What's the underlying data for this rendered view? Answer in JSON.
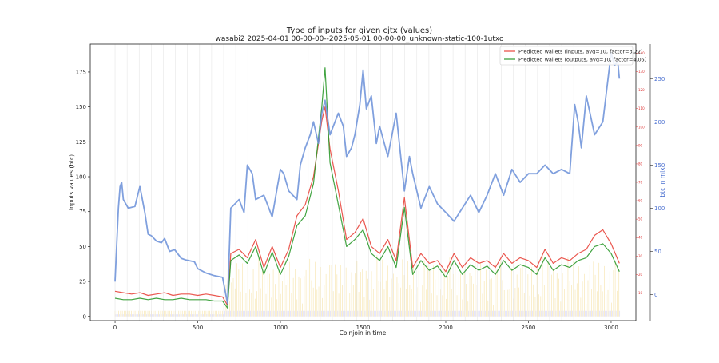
{
  "chart_data": {
    "type": "line",
    "title": "Type of inputs for given cjtx (values)",
    "subtitle": "wasabi2 2025-04-01 00-00-00--2025-05-01 00-00-00_unknown-static-100-1utxo",
    "xlabel": "Coinjoin in time",
    "ylabel": "Inputs values (btc)",
    "ylabel_right": "btc in mix",
    "xlim": [
      -150,
      3150
    ],
    "ylim": [
      -3,
      195
    ],
    "xticks": [
      0,
      500,
      1000,
      1500,
      2000,
      2500,
      3000
    ],
    "yticks": [
      0,
      25,
      50,
      75,
      100,
      125,
      150,
      175
    ],
    "ylim_right": [
      -30,
      290
    ],
    "yticks_right": [
      0,
      50,
      100,
      150,
      200,
      250
    ],
    "ylim_right_inner": [
      -5,
      145
    ],
    "yticks_right_inner": [
      10,
      20,
      30,
      40,
      50,
      60,
      70,
      80,
      90,
      100,
      110,
      120,
      130,
      140
    ],
    "grid": "vertical lines every ~73 coinjoins",
    "legend_position": "top-right",
    "colors": {
      "inputs_wallets": "#e8453c",
      "outputs_wallets": "#2e9a2e",
      "btc_in_mix": "#6a8fd8",
      "yellow_bars": "#f3d98a",
      "blue_bars": "#8c8cf0"
    },
    "series": [
      {
        "name": "Predicted wallets (inputs, avg=10, factor=3.22)",
        "axis": "left",
        "x": [
          0,
          50,
          100,
          150,
          200,
          250,
          300,
          350,
          400,
          450,
          500,
          550,
          600,
          650,
          680,
          700,
          750,
          800,
          850,
          900,
          950,
          1000,
          1050,
          1100,
          1150,
          1200,
          1250,
          1270,
          1300,
          1350,
          1400,
          1450,
          1500,
          1550,
          1600,
          1650,
          1700,
          1750,
          1800,
          1850,
          1900,
          1950,
          2000,
          2050,
          2100,
          2150,
          2200,
          2250,
          2300,
          2350,
          2400,
          2450,
          2500,
          2550,
          2600,
          2650,
          2700,
          2750,
          2800,
          2850,
          2900,
          2950,
          3000,
          3050
        ],
        "values": [
          18,
          17,
          16,
          17,
          15,
          16,
          17,
          15,
          16,
          16,
          15,
          16,
          15,
          14,
          8,
          45,
          48,
          42,
          55,
          35,
          50,
          35,
          48,
          72,
          80,
          100,
          140,
          150,
          120,
          90,
          55,
          60,
          70,
          50,
          45,
          55,
          40,
          85,
          35,
          45,
          38,
          40,
          32,
          45,
          35,
          42,
          38,
          40,
          35,
          45,
          38,
          42,
          40,
          35,
          48,
          38,
          42,
          40,
          45,
          48,
          58,
          62,
          52,
          38
        ]
      },
      {
        "name": "Predicted wallets (outputs, avg=10, factor=4.05)",
        "axis": "left",
        "x": [
          0,
          50,
          100,
          150,
          200,
          250,
          300,
          350,
          400,
          450,
          500,
          550,
          600,
          650,
          680,
          700,
          750,
          800,
          850,
          900,
          950,
          1000,
          1050,
          1100,
          1150,
          1200,
          1250,
          1270,
          1300,
          1350,
          1400,
          1450,
          1500,
          1550,
          1600,
          1650,
          1700,
          1750,
          1800,
          1850,
          1900,
          1950,
          2000,
          2050,
          2100,
          2150,
          2200,
          2250,
          2300,
          2350,
          2400,
          2450,
          2500,
          2550,
          2600,
          2650,
          2700,
          2750,
          2800,
          2850,
          2900,
          2950,
          3000,
          3050
        ],
        "values": [
          13,
          12,
          12,
          13,
          12,
          13,
          12,
          12,
          13,
          12,
          12,
          12,
          11,
          11,
          6,
          40,
          44,
          38,
          50,
          30,
          46,
          30,
          43,
          65,
          72,
          95,
          150,
          178,
          110,
          80,
          50,
          55,
          62,
          45,
          40,
          50,
          35,
          78,
          30,
          40,
          33,
          36,
          28,
          40,
          30,
          37,
          33,
          36,
          30,
          40,
          33,
          37,
          35,
          30,
          42,
          33,
          37,
          35,
          40,
          42,
          50,
          52,
          45,
          32
        ]
      },
      {
        "name": "btc in mix",
        "axis": "right",
        "x": [
          0,
          20,
          30,
          40,
          50,
          80,
          120,
          150,
          160,
          180,
          200,
          220,
          250,
          280,
          300,
          330,
          360,
          400,
          430,
          480,
          500,
          550,
          600,
          650,
          680,
          700,
          750,
          780,
          800,
          830,
          850,
          900,
          950,
          1000,
          1020,
          1050,
          1100,
          1120,
          1150,
          1180,
          1200,
          1230,
          1250,
          1270,
          1300,
          1330,
          1350,
          1380,
          1400,
          1430,
          1450,
          1480,
          1500,
          1520,
          1550,
          1580,
          1600,
          1650,
          1700,
          1750,
          1780,
          1800,
          1850,
          1900,
          1950,
          2000,
          2050,
          2100,
          2150,
          2200,
          2250,
          2300,
          2350,
          2400,
          2450,
          2500,
          2550,
          2600,
          2650,
          2700,
          2750,
          2780,
          2800,
          2820,
          2850,
          2900,
          2950,
          3000,
          3020,
          3040,
          3050
        ],
        "values": [
          15,
          100,
          125,
          130,
          110,
          100,
          102,
          125,
          115,
          95,
          70,
          68,
          62,
          60,
          65,
          50,
          52,
          42,
          40,
          38,
          30,
          25,
          22,
          20,
          -10,
          100,
          110,
          95,
          150,
          140,
          110,
          115,
          90,
          145,
          140,
          120,
          110,
          150,
          170,
          185,
          200,
          175,
          210,
          225,
          185,
          200,
          210,
          195,
          160,
          170,
          185,
          220,
          260,
          215,
          230,
          175,
          195,
          160,
          210,
          120,
          160,
          140,
          100,
          125,
          105,
          95,
          85,
          100,
          115,
          95,
          115,
          140,
          115,
          145,
          130,
          140,
          140,
          150,
          140,
          145,
          140,
          220,
          200,
          170,
          230,
          185,
          200,
          280,
          265,
          270,
          250
        ]
      }
    ]
  }
}
